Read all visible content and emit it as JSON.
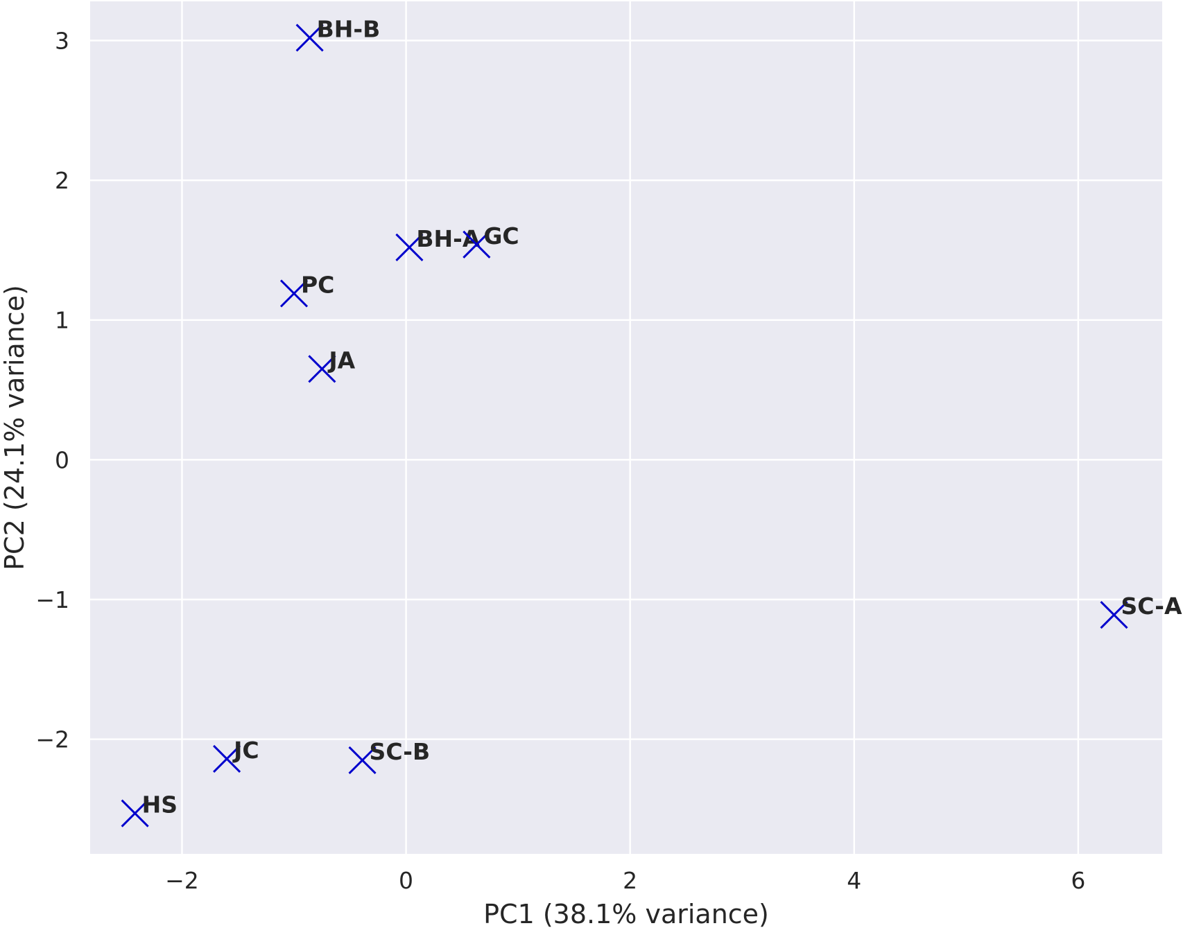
{
  "chart_data": {
    "type": "scatter",
    "title": "",
    "xlabel": "PC1 (38.1% variance)",
    "ylabel": "PC2 (24.1% variance)",
    "xlim": [
      -2.82,
      6.75
    ],
    "ylim": [
      -2.82,
      3.28
    ],
    "xticks": [
      -2,
      0,
      2,
      4,
      6
    ],
    "yticks": [
      -2,
      -1,
      0,
      1,
      2,
      3
    ],
    "x_tick_labels": [
      "−2",
      "0",
      "2",
      "4",
      "6"
    ],
    "y_tick_labels": [
      "−2",
      "−1",
      "0",
      "1",
      "2",
      "3"
    ],
    "grid": true,
    "marker": "x",
    "marker_color": "#0000cc",
    "background_color": "#eaeaf2",
    "points": [
      {
        "label": "BH-B",
        "x": -0.86,
        "y": 3.02
      },
      {
        "label": "BH-A",
        "x": 0.03,
        "y": 1.52
      },
      {
        "label": "GC",
        "x": 0.63,
        "y": 1.54
      },
      {
        "label": "PC",
        "x": -1.0,
        "y": 1.19
      },
      {
        "label": "JA",
        "x": -0.75,
        "y": 0.65
      },
      {
        "label": "SC-A",
        "x": 6.32,
        "y": -1.11
      },
      {
        "label": "JC",
        "x": -1.6,
        "y": -2.14
      },
      {
        "label": "SC-B",
        "x": -0.39,
        "y": -2.15
      },
      {
        "label": "HS",
        "x": -2.42,
        "y": -2.53
      }
    ]
  }
}
